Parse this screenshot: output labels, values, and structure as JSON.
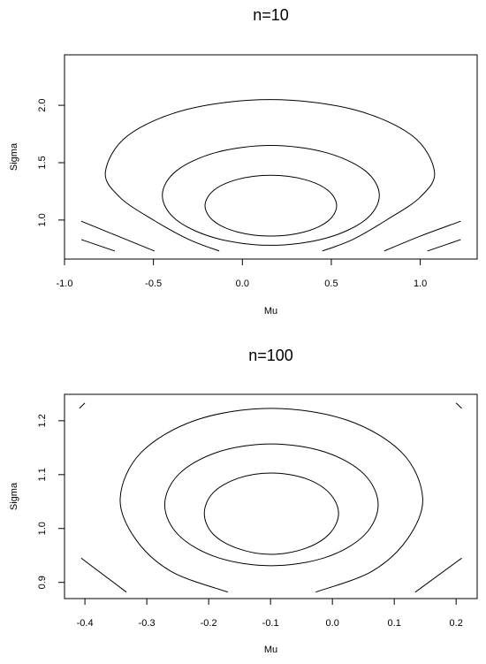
{
  "chart_data": [
    {
      "type": "contour",
      "title": "n=10",
      "xlabel": "Mu",
      "ylabel": "Sigma",
      "xlim": [
        -1.0,
        1.32
      ],
      "ylim": [
        0.66,
        2.44
      ],
      "xticks": [
        {
          "value": -1.0,
          "label": "-1.0"
        },
        -0.5,
        {
          "value": 0,
          "label": "0.0"
        },
        0.5,
        {
          "value": 1.0,
          "label": "1.0"
        }
      ],
      "yticks": [
        {
          "value": 1.0,
          "label": "1.0"
        },
        1.5,
        {
          "value": 2.0,
          "label": "2.0"
        }
      ],
      "series": [
        {
          "color": "#000000",
          "x": [
            0.53,
            0.48,
            0.345,
            0.16,
            -0.025,
            -0.16,
            -0.21,
            -0.16,
            -0.025,
            0.16,
            0.345,
            0.48,
            0.53
          ],
          "y": [
            1.125,
            1.26,
            1.355,
            1.39,
            1.355,
            1.26,
            1.125,
            0.99,
            0.895,
            0.86,
            0.895,
            0.99,
            1.125
          ]
        },
        {
          "color": "#000000",
          "x": [
            0.77,
            0.69,
            0.465,
            0.16,
            -0.145,
            -0.37,
            -0.45,
            -0.37,
            -0.145,
            0.16,
            0.465,
            0.69,
            0.77
          ],
          "y": [
            1.215,
            1.43,
            1.59,
            1.65,
            1.59,
            1.43,
            1.215,
            1.0,
            0.84,
            0.78,
            0.84,
            1.0,
            1.215
          ]
        },
        {
          "color": "#000000",
          "x": [
            0.45,
            0.62,
            0.81,
            1.0,
            1.08,
            0.955,
            0.62,
            0.155,
            -0.31,
            -0.645,
            -0.77,
            -0.69,
            -0.5,
            -0.3,
            -0.13
          ],
          "y": [
            0.73,
            0.83,
            1.0,
            1.2,
            1.42,
            1.735,
            1.965,
            2.05,
            1.965,
            1.735,
            1.42,
            1.2,
            1.0,
            0.83,
            0.73
          ]
        },
        {
          "color": "#000000",
          "x": [
            -0.906,
            -0.7,
            -0.494
          ],
          "y": [
            0.99,
            0.86,
            0.73
          ]
        },
        {
          "color": "#000000",
          "x": [
            -0.906,
            -0.717
          ],
          "y": [
            0.83,
            0.73
          ]
        },
        {
          "color": "#000000",
          "x": [
            1.228,
            1.0,
            0.797
          ],
          "y": [
            0.99,
            0.86,
            0.73
          ]
        },
        {
          "color": "#000000",
          "x": [
            1.228,
            1.04
          ],
          "y": [
            0.83,
            0.73
          ]
        }
      ]
    },
    {
      "type": "contour",
      "title": "n=100",
      "xlabel": "Mu",
      "ylabel": "Sigma",
      "xlim": [
        -0.433,
        0.234
      ],
      "ylim": [
        0.87,
        1.249
      ],
      "xticks": [
        -0.4,
        -0.3,
        -0.2,
        -0.1,
        {
          "value": 0,
          "label": "0.0"
        },
        0.1,
        0.2
      ],
      "yticks": [
        0.9,
        {
          "value": 1.0,
          "label": "1.0"
        },
        1.1,
        1.2
      ],
      "series": [
        {
          "color": "#000000",
          "x": [
            0.01,
            -0.005,
            -0.044,
            -0.099,
            -0.153,
            -0.193,
            -0.207,
            -0.193,
            -0.153,
            -0.099,
            -0.044,
            -0.005,
            0.01
          ],
          "y": [
            1.028,
            1.066,
            1.093,
            1.103,
            1.093,
            1.066,
            1.028,
            0.99,
            0.963,
            0.952,
            0.963,
            0.99,
            1.028
          ]
        },
        {
          "color": "#000000",
          "x": [
            0.074,
            0.051,
            -0.012,
            -0.099,
            -0.185,
            -0.248,
            -0.271,
            -0.248,
            -0.185,
            -0.099,
            -0.012,
            0.051,
            0.074
          ],
          "y": [
            1.044,
            1.101,
            1.142,
            1.157,
            1.142,
            1.101,
            1.044,
            0.987,
            0.946,
            0.931,
            0.946,
            0.987,
            1.044
          ]
        },
        {
          "color": "#000000",
          "x": [
            -0.027,
            0.063,
            0.121,
            0.146,
            0.113,
            0.024,
            -0.099,
            -0.221,
            -0.31,
            -0.343,
            -0.318,
            -0.26,
            -0.169
          ],
          "y": [
            0.882,
            0.92,
            0.98,
            1.056,
            1.14,
            1.201,
            1.223,
            1.201,
            1.14,
            1.056,
            0.98,
            0.92,
            0.882
          ]
        },
        {
          "color": "#000000",
          "x": [
            -0.406,
            -0.333
          ],
          "y": [
            0.945,
            0.882
          ]
        },
        {
          "color": "#000000",
          "x": [
            0.209,
            0.134
          ],
          "y": [
            0.945,
            0.882
          ]
        },
        {
          "color": "#000000",
          "x": [
            -0.409,
            -0.4
          ],
          "y": [
            1.223,
            1.233
          ]
        },
        {
          "color": "#000000",
          "x": [
            0.2,
            0.209
          ],
          "y": [
            1.233,
            1.223
          ]
        }
      ]
    }
  ]
}
